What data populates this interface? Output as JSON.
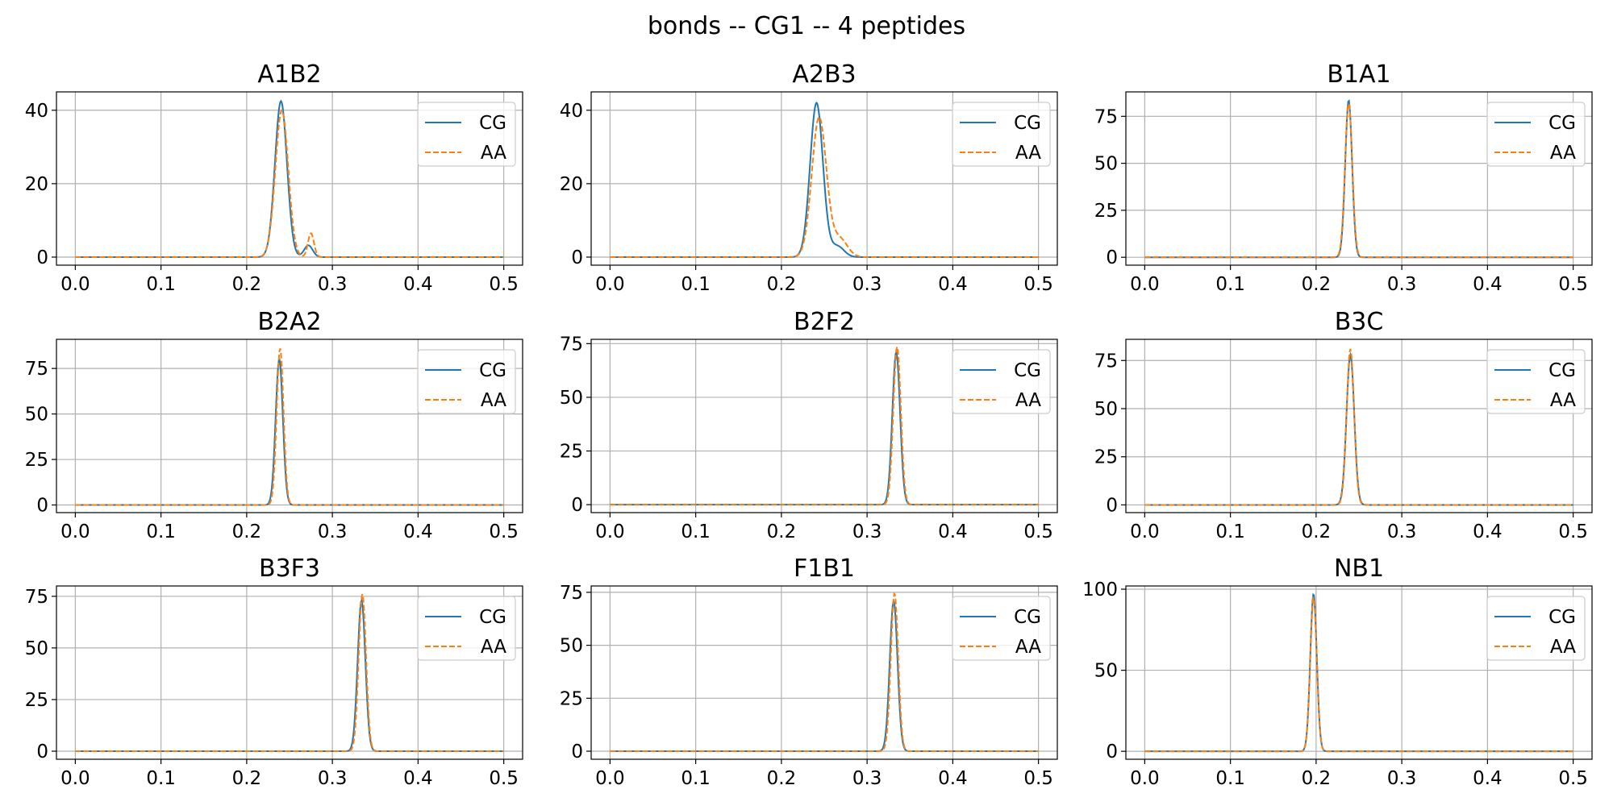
{
  "figure_title": "bonds -- CG1 -- 4 peptides",
  "colors": {
    "CG": "#1f77b4",
    "AA": "#ff7f0e",
    "grid": "#b0b0b0"
  },
  "chart_data": [
    {
      "type": "line",
      "title": "A1B2",
      "xlim": [
        -0.022,
        0.522
      ],
      "ylim": [
        -2.2,
        45
      ],
      "xticks": [
        0.0,
        0.1,
        0.2,
        0.3,
        0.4,
        0.5
      ],
      "xtick_labels": [
        "0.0",
        "0.1",
        "0.2",
        "0.3",
        "0.4",
        "0.5"
      ],
      "yticks": [
        0,
        20,
        40
      ],
      "ytick_labels": [
        "0",
        "20",
        "40"
      ],
      "grid": true,
      "legend": "top-right",
      "series": [
        {
          "name": "CG",
          "style": "solid",
          "peaks": [
            {
              "mu": 0.24,
              "sigma": 0.007,
              "height": 42.5
            },
            {
              "mu": 0.272,
              "sigma": 0.005,
              "height": 3.2
            }
          ]
        },
        {
          "name": "AA",
          "style": "dashed",
          "peaks": [
            {
              "mu": 0.241,
              "sigma": 0.0075,
              "height": 40.0
            },
            {
              "mu": 0.275,
              "sigma": 0.0035,
              "height": 6.5
            }
          ]
        }
      ]
    },
    {
      "type": "line",
      "title": "A2B3",
      "xlim": [
        -0.022,
        0.522
      ],
      "ylim": [
        -2.2,
        45
      ],
      "xticks": [
        0.0,
        0.1,
        0.2,
        0.3,
        0.4,
        0.5
      ],
      "xtick_labels": [
        "0.0",
        "0.1",
        "0.2",
        "0.3",
        "0.4",
        "0.5"
      ],
      "yticks": [
        0,
        20,
        40
      ],
      "ytick_labels": [
        "0",
        "20",
        "40"
      ],
      "grid": true,
      "legend": "top-right",
      "series": [
        {
          "name": "CG",
          "style": "solid",
          "peaks": [
            {
              "mu": 0.241,
              "sigma": 0.0075,
              "height": 42.0
            },
            {
              "mu": 0.265,
              "sigma": 0.008,
              "height": 3.0
            }
          ]
        },
        {
          "name": "AA",
          "style": "dashed",
          "peaks": [
            {
              "mu": 0.244,
              "sigma": 0.0085,
              "height": 38.0
            },
            {
              "mu": 0.268,
              "sigma": 0.009,
              "height": 5.0
            }
          ]
        }
      ]
    },
    {
      "type": "line",
      "title": "B1A1",
      "xlim": [
        -0.022,
        0.522
      ],
      "ylim": [
        -4.2,
        88
      ],
      "xticks": [
        0.0,
        0.1,
        0.2,
        0.3,
        0.4,
        0.5
      ],
      "xtick_labels": [
        "0.0",
        "0.1",
        "0.2",
        "0.3",
        "0.4",
        "0.5"
      ],
      "yticks": [
        0,
        25,
        50,
        75
      ],
      "ytick_labels": [
        "0",
        "25",
        "50",
        "75"
      ],
      "grid": true,
      "legend": "top-right",
      "series": [
        {
          "name": "CG",
          "style": "solid",
          "peaks": [
            {
              "mu": 0.238,
              "sigma": 0.004,
              "height": 83.5
            }
          ]
        },
        {
          "name": "AA",
          "style": "dashed",
          "peaks": [
            {
              "mu": 0.238,
              "sigma": 0.0042,
              "height": 82.0
            }
          ]
        }
      ]
    },
    {
      "type": "line",
      "title": "B2A2",
      "xlim": [
        -0.022,
        0.522
      ],
      "ylim": [
        -4.2,
        91
      ],
      "xticks": [
        0.0,
        0.1,
        0.2,
        0.3,
        0.4,
        0.5
      ],
      "xtick_labels": [
        "0.0",
        "0.1",
        "0.2",
        "0.3",
        "0.4",
        "0.5"
      ],
      "yticks": [
        0,
        25,
        50,
        75
      ],
      "ytick_labels": [
        "0",
        "25",
        "50",
        "75"
      ],
      "grid": true,
      "legend": "top-right",
      "series": [
        {
          "name": "CG",
          "style": "solid",
          "peaks": [
            {
              "mu": 0.238,
              "sigma": 0.0042,
              "height": 80.0
            }
          ]
        },
        {
          "name": "AA",
          "style": "dashed",
          "peaks": [
            {
              "mu": 0.239,
              "sigma": 0.004,
              "height": 86.0
            }
          ]
        }
      ]
    },
    {
      "type": "line",
      "title": "B2F2",
      "xlim": [
        -0.022,
        0.522
      ],
      "ylim": [
        -3.7,
        77
      ],
      "xticks": [
        0.0,
        0.1,
        0.2,
        0.3,
        0.4,
        0.5
      ],
      "xtick_labels": [
        "0.0",
        "0.1",
        "0.2",
        "0.3",
        "0.4",
        "0.5"
      ],
      "yticks": [
        0,
        25,
        50,
        75
      ],
      "ytick_labels": [
        "0",
        "25",
        "50",
        "75"
      ],
      "grid": true,
      "legend": "top-right",
      "series": [
        {
          "name": "CG",
          "style": "solid",
          "peaks": [
            {
              "mu": 0.334,
              "sigma": 0.0045,
              "height": 71.0
            }
          ]
        },
        {
          "name": "AA",
          "style": "dashed",
          "peaks": [
            {
              "mu": 0.335,
              "sigma": 0.0044,
              "height": 73.5
            }
          ]
        }
      ]
    },
    {
      "type": "line",
      "title": "B3C",
      "xlim": [
        -0.022,
        0.522
      ],
      "ylim": [
        -4.0,
        86
      ],
      "xticks": [
        0.0,
        0.1,
        0.2,
        0.3,
        0.4,
        0.5
      ],
      "xtick_labels": [
        "0.0",
        "0.1",
        "0.2",
        "0.3",
        "0.4",
        "0.5"
      ],
      "yticks": [
        0,
        25,
        50,
        75
      ],
      "ytick_labels": [
        "0",
        "25",
        "50",
        "75"
      ],
      "grid": true,
      "legend": "top-right",
      "series": [
        {
          "name": "CG",
          "style": "solid",
          "peaks": [
            {
              "mu": 0.24,
              "sigma": 0.0045,
              "height": 78.0
            }
          ]
        },
        {
          "name": "AA",
          "style": "dashed",
          "peaks": [
            {
              "mu": 0.24,
              "sigma": 0.0043,
              "height": 81.0
            }
          ]
        }
      ]
    },
    {
      "type": "line",
      "title": "B3F3",
      "xlim": [
        -0.022,
        0.522
      ],
      "ylim": [
        -3.9,
        80
      ],
      "xticks": [
        0.0,
        0.1,
        0.2,
        0.3,
        0.4,
        0.5
      ],
      "xtick_labels": [
        "0.0",
        "0.1",
        "0.2",
        "0.3",
        "0.4",
        "0.5"
      ],
      "yticks": [
        0,
        25,
        50,
        75
      ],
      "ytick_labels": [
        "0",
        "25",
        "50",
        "75"
      ],
      "grid": true,
      "legend": "top-right",
      "series": [
        {
          "name": "CG",
          "style": "solid",
          "peaks": [
            {
              "mu": 0.334,
              "sigma": 0.0045,
              "height": 73.0
            }
          ]
        },
        {
          "name": "AA",
          "style": "dashed",
          "peaks": [
            {
              "mu": 0.335,
              "sigma": 0.0043,
              "height": 76.0
            }
          ]
        }
      ]
    },
    {
      "type": "line",
      "title": "F1B1",
      "xlim": [
        -0.022,
        0.522
      ],
      "ylim": [
        -3.8,
        78
      ],
      "xticks": [
        0.0,
        0.1,
        0.2,
        0.3,
        0.4,
        0.5
      ],
      "xtick_labels": [
        "0.0",
        "0.1",
        "0.2",
        "0.3",
        "0.4",
        "0.5"
      ],
      "yticks": [
        0,
        25,
        50,
        75
      ],
      "ytick_labels": [
        "0",
        "25",
        "50",
        "75"
      ],
      "grid": true,
      "legend": "top-right",
      "series": [
        {
          "name": "CG",
          "style": "solid",
          "peaks": [
            {
              "mu": 0.331,
              "sigma": 0.0045,
              "height": 71.0
            }
          ]
        },
        {
          "name": "AA",
          "style": "dashed",
          "peaks": [
            {
              "mu": 0.332,
              "sigma": 0.0043,
              "height": 74.5
            }
          ]
        }
      ]
    },
    {
      "type": "line",
      "title": "NB1",
      "xlim": [
        -0.022,
        0.522
      ],
      "ylim": [
        -4.9,
        102
      ],
      "xticks": [
        0.0,
        0.1,
        0.2,
        0.3,
        0.4,
        0.5
      ],
      "xtick_labels": [
        "0.0",
        "0.1",
        "0.2",
        "0.3",
        "0.4",
        "0.5"
      ],
      "yticks": [
        0,
        50,
        100
      ],
      "ytick_labels": [
        "0",
        "50",
        "100"
      ],
      "grid": true,
      "legend": "top-right",
      "series": [
        {
          "name": "CG",
          "style": "solid",
          "peaks": [
            {
              "mu": 0.197,
              "sigma": 0.0038,
              "height": 97.0
            }
          ]
        },
        {
          "name": "AA",
          "style": "dashed",
          "peaks": [
            {
              "mu": 0.197,
              "sigma": 0.0038,
              "height": 95.0
            }
          ]
        }
      ]
    }
  ]
}
